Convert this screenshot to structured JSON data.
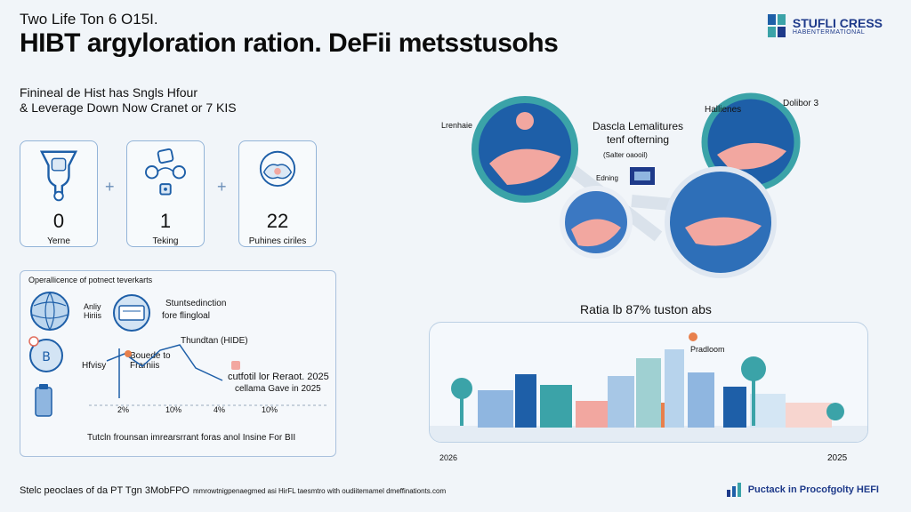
{
  "header": {
    "subtitle": "Two Life Ton 6 O15I.",
    "headline": "HIBT argyloration ration. DeFii metsstusohs"
  },
  "brand": {
    "name": "STUFLI CRESS",
    "tagline": "HABENTERMATIONAL"
  },
  "intro": {
    "line1": "Finineal de Hist has Sngls Hfour",
    "line2": "& Leverage Down Now Cranet or 7 KIS"
  },
  "steps": [
    {
      "value": "0",
      "label": "Yerne",
      "icon": "bag-icon"
    },
    {
      "value": "1",
      "label": "Teking",
      "icon": "coins-icon"
    },
    {
      "value": "22",
      "label": "Puhines ciriles",
      "icon": "hands-icon"
    }
  ],
  "plus_symbol": "+",
  "panel": {
    "title": "Operallicence of potnect teverkarts",
    "globe_label": "Anliy\nHiriis",
    "device_label_1": "Stuntsedinction",
    "device_label_2": "fore flingloal",
    "chart_heading": "Thundtan (HIDE)",
    "mid_label_1": "Bouede to",
    "mid_label_2": "Frarniis",
    "y_label": "Hfvisy",
    "note_1": "cutfotil lor Reraot. 2025",
    "note_2": "cellama Gave in 2025",
    "ticks": [
      "2%",
      "10%",
      "4%",
      "10%"
    ],
    "footer": "Tutcln frounsan imrearsrrant foras anol Insine For BII"
  },
  "circles": {
    "left_label": "Lrenhaie",
    "title_1": "Dascla Lemalitures",
    "title_2": "tenf ofterning",
    "sub": "(Salter oaooil)",
    "edit_label": "Edning",
    "right_label_1": "Hallienes",
    "right_label_2": "Dolibor 3"
  },
  "city": {
    "title": "Ratia lb 87% tuston abs",
    "marker_label": "Pradloom",
    "x_start": "2026",
    "x_end": "2025"
  },
  "footer": {
    "left_main": "Stelc peoclaes of da PT Tgn 3MobFPO",
    "left_fine": "mmrowtnigpenaegmed asi HirFL taesmtro with oudiitemamel dmeffinationts.com",
    "right": "Puctack in Procofgolty HEFI"
  },
  "colors": {
    "accent_blue": "#1e5fa8",
    "light_blue": "#93b4d8",
    "teal": "#3ba3a8",
    "pink": "#f2a7a0",
    "orange": "#e8804c"
  }
}
